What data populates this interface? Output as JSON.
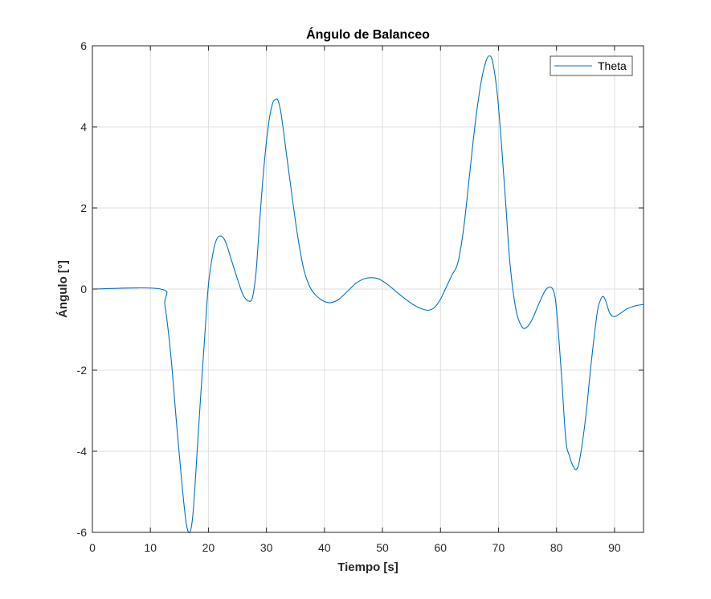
{
  "chart_data": {
    "type": "line",
    "title": "Ángulo de Balanceo",
    "xlabel": "Tiempo [s]",
    "ylabel": "Ángulo [°]",
    "xlim": [
      0,
      95
    ],
    "ylim": [
      -6,
      6
    ],
    "xticks": [
      0,
      10,
      20,
      30,
      40,
      50,
      60,
      70,
      80,
      90
    ],
    "yticks": [
      -6,
      -4,
      -2,
      0,
      2,
      4,
      6
    ],
    "grid": true,
    "legend_position": "top-right",
    "series": [
      {
        "name": "Theta",
        "color": "#0072BD",
        "x": [
          0,
          11.8,
          12.5,
          13.5,
          14.5,
          15.5,
          16.2,
          16.8,
          17.3,
          17.8,
          18.5,
          19.3,
          20.0,
          20.8,
          21.5,
          22.3,
          23.0,
          24.0,
          25.0,
          26.0,
          27.0,
          27.6,
          28.2,
          28.8,
          29.5,
          30.3,
          31.0,
          31.6,
          32.0,
          32.5,
          33.3,
          34.5,
          35.5,
          36.5,
          37.5,
          38.5,
          39.5,
          40.5,
          41.3,
          42.5,
          44.0,
          45.5,
          47.0,
          48.3,
          49.5,
          51.0,
          52.5,
          54.0,
          55.5,
          57.0,
          58.0,
          59.0,
          60.0,
          61.0,
          62.0,
          63.0,
          64.0,
          65.0,
          66.0,
          67.0,
          67.8,
          68.4,
          69.0,
          69.8,
          70.5,
          71.3,
          72.0,
          73.0,
          74.0,
          74.8,
          75.8,
          77.0,
          78.0,
          78.8,
          79.5,
          80.0,
          80.8,
          81.6,
          82.2,
          82.8,
          83.4,
          84.0,
          85.0,
          86.0,
          87.0,
          87.5,
          88.0,
          88.5,
          89.2,
          90.0,
          91.0,
          92.0,
          93.0,
          94.0,
          95.0
        ],
        "y": [
          0,
          0,
          -0.4,
          -1.6,
          -3.3,
          -4.9,
          -5.8,
          -6.0,
          -5.6,
          -4.6,
          -3.0,
          -1.3,
          0.1,
          0.9,
          1.25,
          1.3,
          1.15,
          0.7,
          0.25,
          -0.15,
          -0.3,
          -0.2,
          0.4,
          1.6,
          2.9,
          4.0,
          4.55,
          4.68,
          4.65,
          4.35,
          3.5,
          2.2,
          1.2,
          0.45,
          0.05,
          -0.15,
          -0.27,
          -0.33,
          -0.33,
          -0.25,
          -0.05,
          0.15,
          0.26,
          0.28,
          0.24,
          0.1,
          -0.08,
          -0.25,
          -0.4,
          -0.5,
          -0.52,
          -0.45,
          -0.25,
          0.05,
          0.35,
          0.65,
          1.5,
          2.8,
          4.1,
          5.1,
          5.6,
          5.75,
          5.6,
          4.8,
          3.6,
          2.0,
          0.6,
          -0.5,
          -0.92,
          -0.95,
          -0.75,
          -0.35,
          -0.05,
          0.05,
          -0.05,
          -0.5,
          -2.0,
          -3.7,
          -4.1,
          -4.35,
          -4.45,
          -4.2,
          -3.2,
          -1.8,
          -0.6,
          -0.3,
          -0.18,
          -0.3,
          -0.6,
          -0.68,
          -0.6,
          -0.5,
          -0.44,
          -0.4,
          -0.38
        ]
      }
    ]
  }
}
